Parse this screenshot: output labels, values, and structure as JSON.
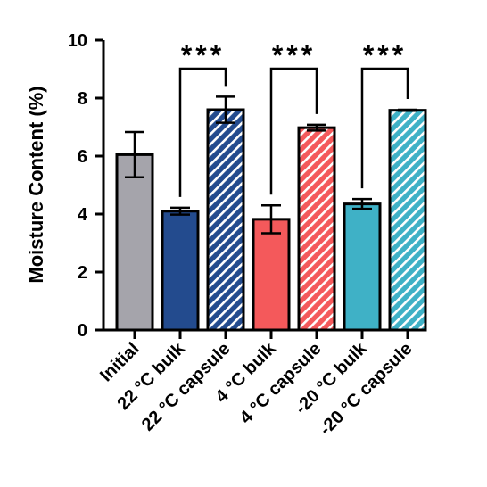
{
  "chart_data": {
    "type": "bar",
    "title": "",
    "xlabel": "",
    "ylabel": "Moisture Content (%)",
    "ylim": [
      0,
      10
    ],
    "yticks": [
      "0",
      "2",
      "4",
      "6",
      "8",
      "10"
    ],
    "grid": false,
    "categories": [
      "Initial",
      "22 °C bulk",
      "22 °C capsule",
      "4 °C bulk",
      "4 °C capsule",
      "-20 °C bulk",
      "-20 °C capsule"
    ],
    "values": [
      6.05,
      4.1,
      7.6,
      3.82,
      6.98,
      4.35,
      7.58
    ],
    "errors": [
      0.78,
      0.12,
      0.45,
      0.48,
      0.1,
      0.17,
      0.02
    ],
    "colors": [
      "#a5a4ab",
      "#234b8e",
      "#234b8e",
      "#f4595b",
      "#f4595b",
      "#3fb1c6",
      "#3fb1c6"
    ],
    "hatched": [
      false,
      false,
      true,
      false,
      true,
      false,
      true
    ],
    "significance": [
      {
        "from": 1,
        "to": 2,
        "label": "***"
      },
      {
        "from": 3,
        "to": 4,
        "label": "***"
      },
      {
        "from": 5,
        "to": 6,
        "label": "***"
      }
    ]
  }
}
